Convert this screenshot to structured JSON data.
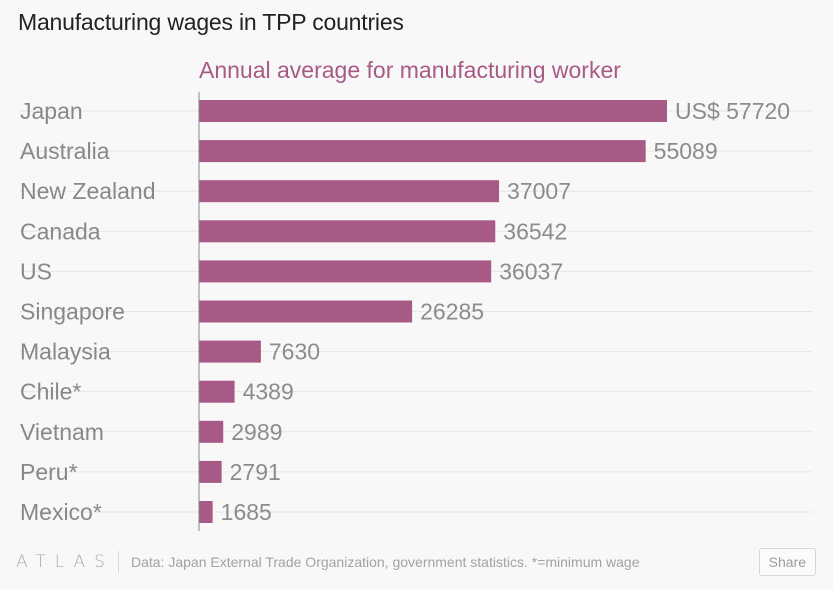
{
  "title": "Manufacturing wages in TPP countries",
  "footer": {
    "logo": "ATLAS",
    "source": "Data: Japan External Trade Organization, government statistics. *=minimum wage",
    "share_label": "Share"
  },
  "colors": {
    "bar": "#a85a86",
    "subtitle": "#a85a86",
    "label": "#888888",
    "gridline": "#e6e6e6"
  },
  "chart_data": {
    "type": "bar",
    "orientation": "horizontal",
    "title": "Manufacturing wages in TPP countries",
    "subtitle": "Annual average for manufacturing worker",
    "categories": [
      "Japan",
      "Australia",
      "New Zealand",
      "Canada",
      "US",
      "Singapore",
      "Malaysia",
      "Chile*",
      "Vietnam",
      "Peru*",
      "Mexico*"
    ],
    "values": [
      57720,
      55089,
      37007,
      36542,
      36037,
      26285,
      7630,
      4389,
      2989,
      2791,
      1685
    ],
    "value_labels": [
      "US$ 57720",
      "55089",
      "37007",
      "36542",
      "36037",
      "26285",
      "7630",
      "4389",
      "2989",
      "2791",
      "1685"
    ],
    "xlim": [
      0,
      57720
    ],
    "xlabel": "",
    "ylabel": "",
    "grid": true
  }
}
